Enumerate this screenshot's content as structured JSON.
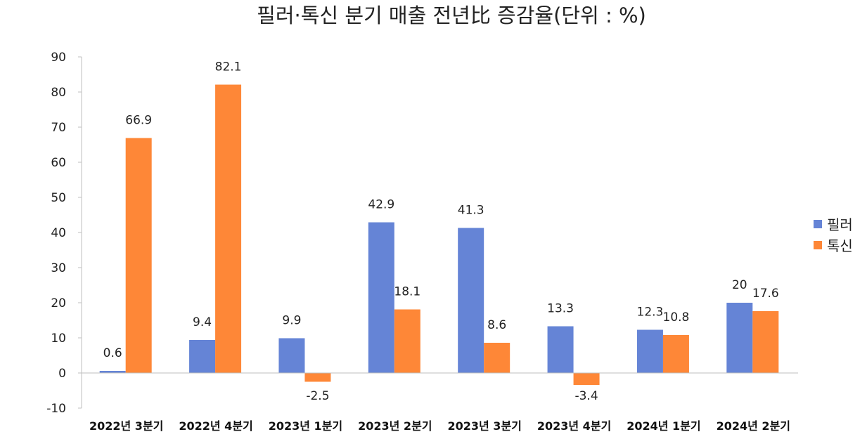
{
  "chart_data": {
    "type": "bar",
    "title": "필러·톡신 분기 매출 전년比 증감율(단위 : %)",
    "xlabel": "",
    "ylabel": "",
    "ylim": [
      -10,
      90
    ],
    "yticks": [
      90,
      80,
      70,
      60,
      50,
      40,
      30,
      20,
      10,
      0,
      -10
    ],
    "grid": false,
    "legend_position": "right",
    "categories": [
      "2022년 3분기",
      "2022년 4분기",
      "2023년 1분기",
      "2023년 2분기",
      "2023년 3분기",
      "2023년 4분기",
      "2024년 1분기",
      "2024년 2분기"
    ],
    "series": [
      {
        "name": "필러",
        "color": "#6584D6",
        "values": [
          0.6,
          9.4,
          9.9,
          42.9,
          41.3,
          13.3,
          12.3,
          20
        ],
        "labels": [
          "0.6",
          "9.4",
          "9.9",
          "42.9",
          "41.3",
          "13.3",
          "12.3",
          "20"
        ]
      },
      {
        "name": "톡신",
        "color": "#FE8737",
        "values": [
          66.9,
          82.1,
          -2.5,
          18.1,
          8.6,
          -3.4,
          10.8,
          17.6
        ],
        "labels": [
          "66.9",
          "82.1",
          "-2.5",
          "18.1",
          "8.6",
          "-3.4",
          "10.8",
          "17.6"
        ]
      }
    ]
  }
}
